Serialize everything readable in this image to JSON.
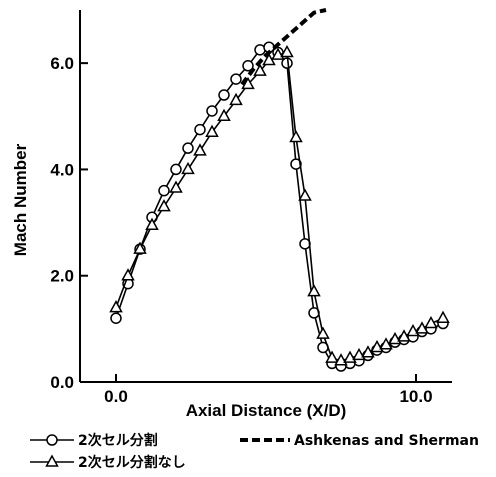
{
  "chart_data": {
    "type": "line",
    "xlabel": "Axial Distance (X/D)",
    "ylabel": "Mach Number",
    "xlim": [
      -1.2,
      11.2
    ],
    "ylim": [
      0,
      7.0
    ],
    "x_tick_labels": [
      "0.0",
      "10.0"
    ],
    "x_tick_values": [
      0,
      10
    ],
    "y_tick_labels": [
      "0.0",
      "2.0",
      "4.0",
      "6.0"
    ],
    "y_tick_values": [
      0,
      2,
      4,
      6
    ],
    "grid": false,
    "legend_position": "bottom",
    "series": [
      {
        "name": "2次セル分割",
        "marker": "circle",
        "style": "solid",
        "color": "#000000",
        "x": [
          0.0,
          0.4,
          0.8,
          1.2,
          1.6,
          2.0,
          2.4,
          2.8,
          3.2,
          3.6,
          4.0,
          4.4,
          4.8,
          5.1,
          5.4,
          5.7,
          6.0,
          6.3,
          6.6,
          6.9,
          7.2,
          7.5,
          7.8,
          8.1,
          8.4,
          8.7,
          9.0,
          9.3,
          9.6,
          9.9,
          10.2,
          10.5,
          10.9
        ],
        "y": [
          1.2,
          1.85,
          2.5,
          3.1,
          3.6,
          4.0,
          4.4,
          4.75,
          5.1,
          5.4,
          5.7,
          5.95,
          6.25,
          6.3,
          6.2,
          6.0,
          4.1,
          2.6,
          1.3,
          0.65,
          0.35,
          0.3,
          0.35,
          0.4,
          0.5,
          0.6,
          0.65,
          0.75,
          0.8,
          0.85,
          0.95,
          1.0,
          1.1
        ]
      },
      {
        "name": "2次セル分割なし",
        "marker": "triangle",
        "style": "solid",
        "color": "#000000",
        "x": [
          0.0,
          0.4,
          0.8,
          1.2,
          1.6,
          2.0,
          2.4,
          2.8,
          3.2,
          3.6,
          4.0,
          4.4,
          4.8,
          5.1,
          5.4,
          5.7,
          6.0,
          6.3,
          6.6,
          6.9,
          7.2,
          7.5,
          7.8,
          8.1,
          8.4,
          8.7,
          9.0,
          9.3,
          9.6,
          9.9,
          10.2,
          10.5,
          10.9
        ],
        "y": [
          1.4,
          2.0,
          2.5,
          2.95,
          3.3,
          3.65,
          4.0,
          4.35,
          4.7,
          5.0,
          5.3,
          5.6,
          5.85,
          6.05,
          6.15,
          6.2,
          4.6,
          3.5,
          1.7,
          0.9,
          0.45,
          0.4,
          0.45,
          0.5,
          0.55,
          0.65,
          0.7,
          0.8,
          0.85,
          0.95,
          1.0,
          1.1,
          1.2
        ]
      },
      {
        "name": "Ashkenas and Sherman",
        "marker": "none",
        "style": "dashed",
        "color": "#000000",
        "x": [
          4.2,
          4.6,
          5.0,
          5.4,
          5.8,
          6.2,
          6.6,
          7.0
        ],
        "y": [
          5.6,
          5.9,
          6.15,
          6.35,
          6.55,
          6.75,
          6.95,
          7.0
        ]
      }
    ]
  }
}
